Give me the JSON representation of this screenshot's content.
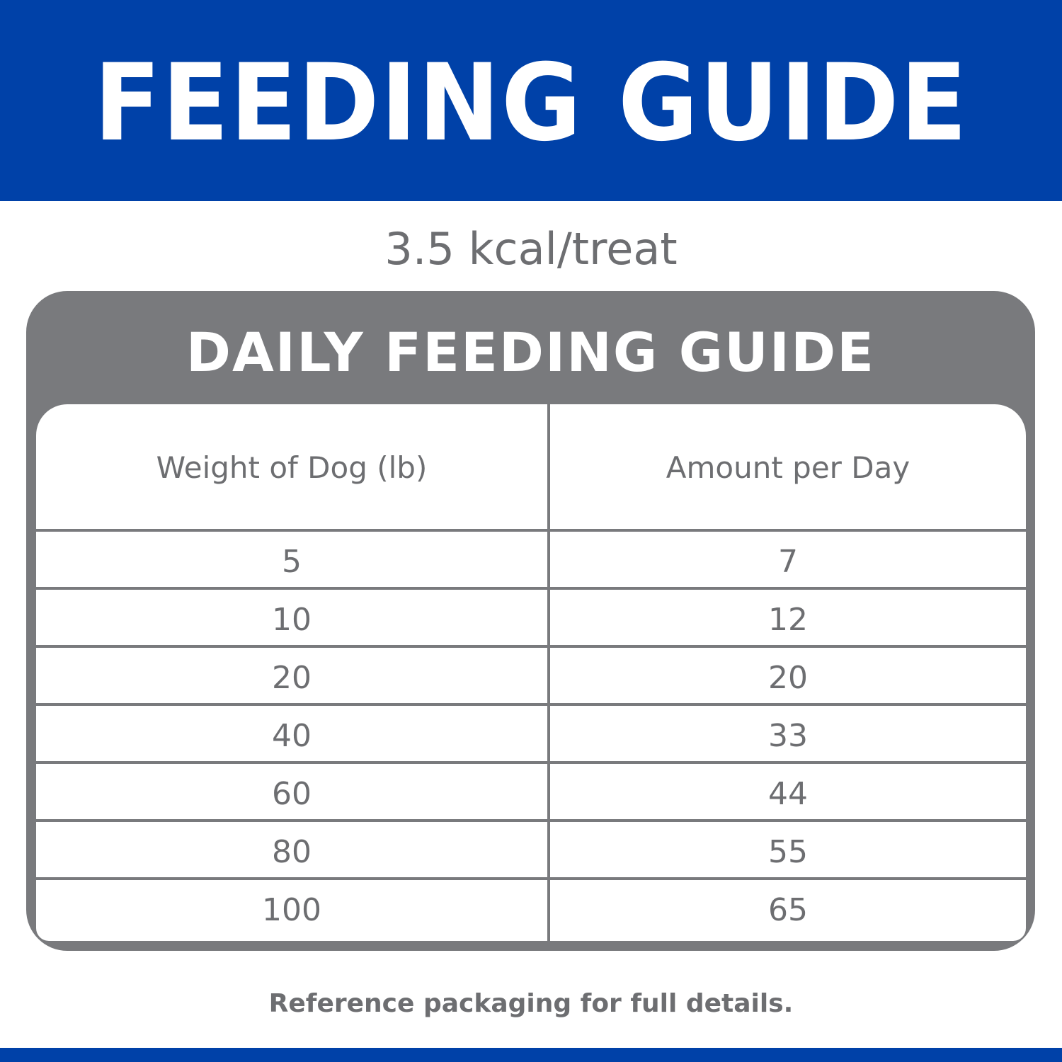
{
  "header": {
    "title": "FEEDING GUIDE"
  },
  "subtitle": "3.5 kcal/treat",
  "card": {
    "title": "DAILY FEEDING GUIDE",
    "columns": [
      "Weight of Dog (lb)",
      "Amount per Day"
    ],
    "rows": [
      [
        "5",
        "7"
      ],
      [
        "10",
        "12"
      ],
      [
        "20",
        "20"
      ],
      [
        "40",
        "33"
      ],
      [
        "60",
        "44"
      ],
      [
        "80",
        "55"
      ],
      [
        "100",
        "65"
      ]
    ]
  },
  "footnote": "Reference packaging for full details.",
  "colors": {
    "brand_blue": "#0041a8",
    "gray": "#797a7d",
    "text_gray": "#6d6e71",
    "white": "#ffffff"
  }
}
